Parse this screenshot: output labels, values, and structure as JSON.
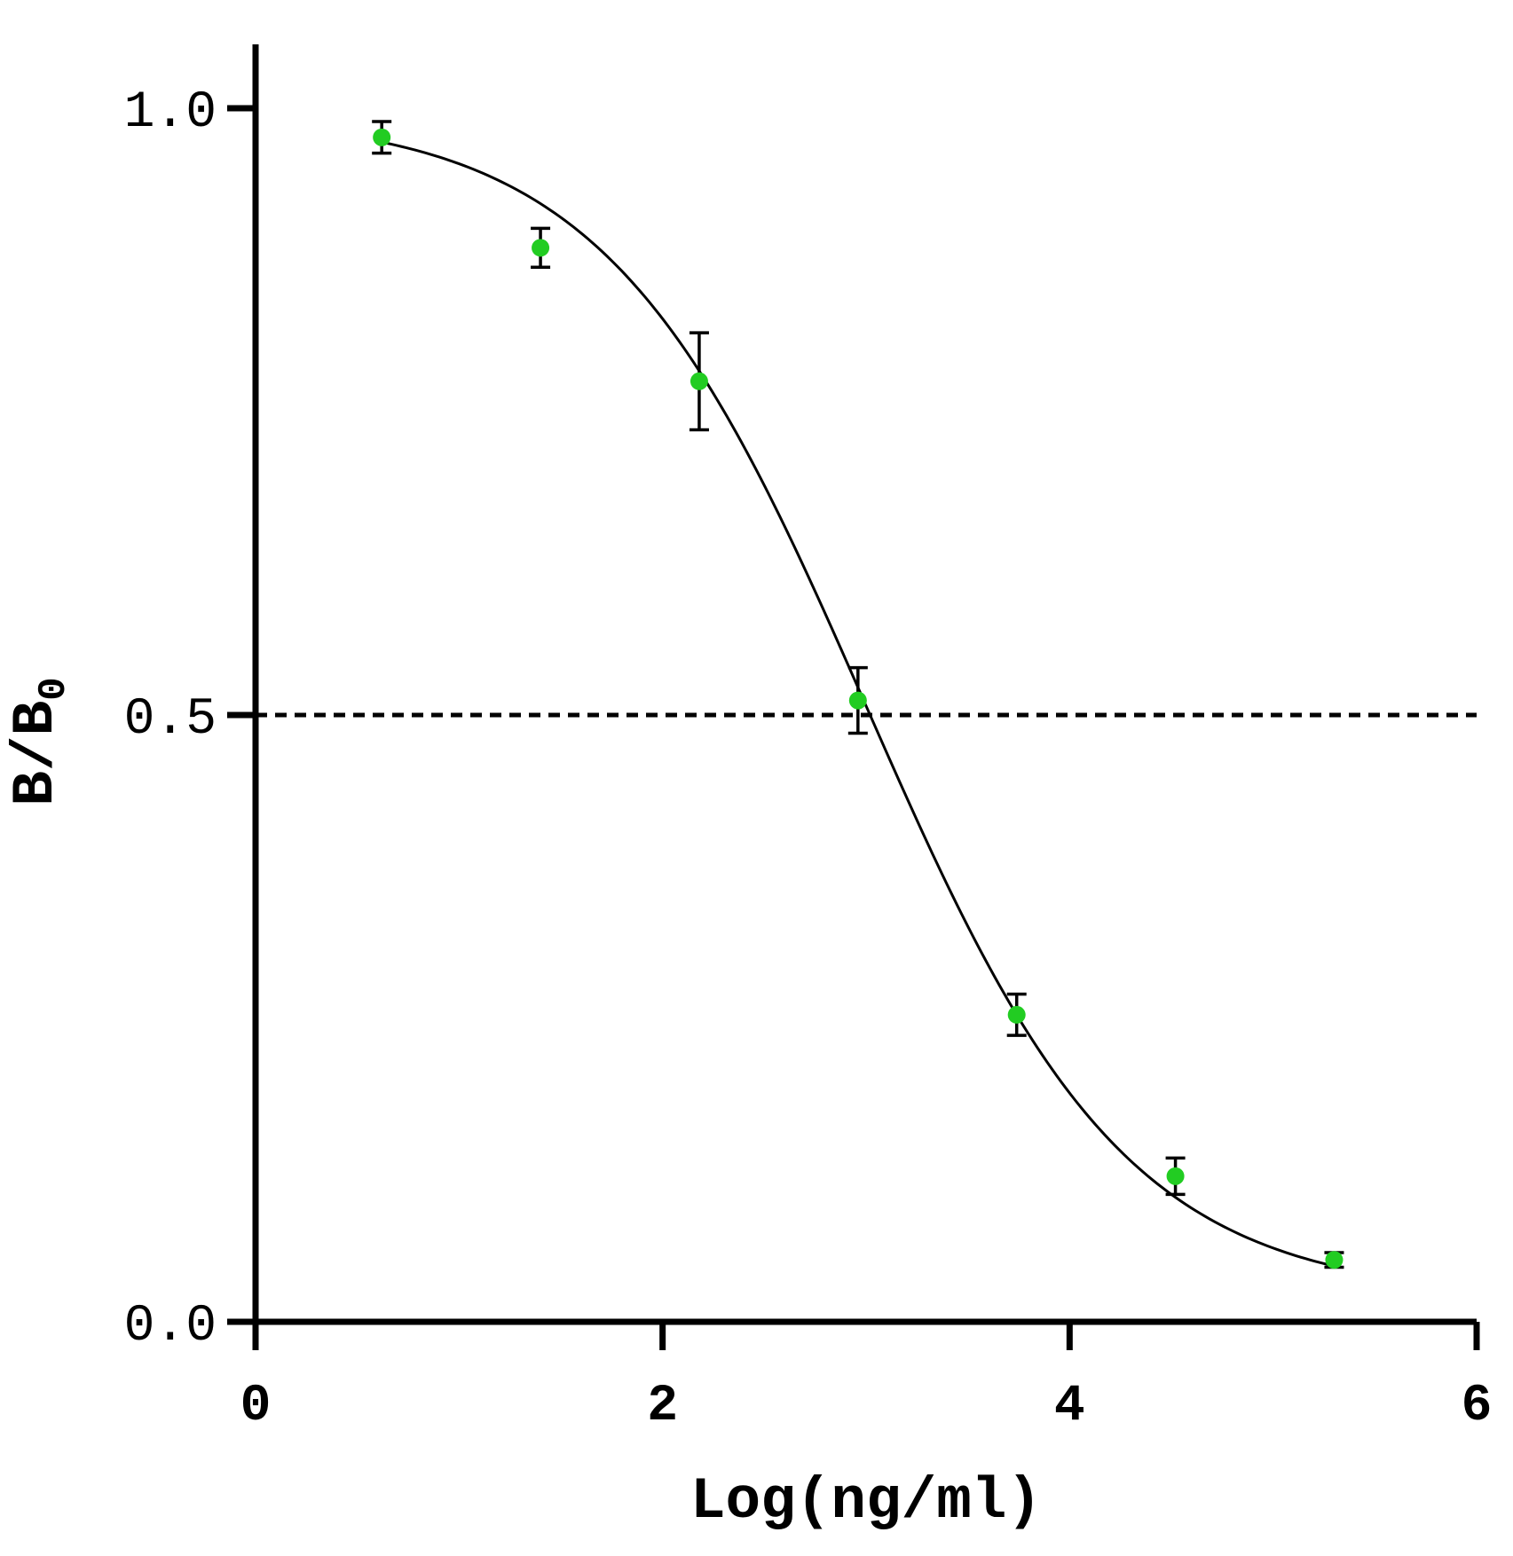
{
  "chart_data": {
    "type": "scatter",
    "xlabel": "Log(ng/ml)",
    "ylabel": {
      "main": "B/B",
      "subscript": "0"
    },
    "xlim": [
      0,
      6
    ],
    "ylim": [
      0,
      1.05
    ],
    "xticks": [
      0,
      2,
      4,
      6
    ],
    "xtick_labels": [
      "0",
      "2",
      "4",
      "6"
    ],
    "yticks": [
      0.0,
      0.5,
      1.0
    ],
    "ytick_labels": [
      "0.0",
      "0.5",
      "1.0"
    ],
    "grid": false,
    "legend": "none",
    "reference_line": {
      "y": 0.5,
      "style": "dashed"
    },
    "series": [
      {
        "marker_color": "#22cc22",
        "points": [
          {
            "x": 0.62,
            "y": 0.976,
            "err": 0.013
          },
          {
            "x": 1.4,
            "y": 0.885,
            "err": 0.016
          },
          {
            "x": 2.18,
            "y": 0.775,
            "err": 0.04
          },
          {
            "x": 2.96,
            "y": 0.512,
            "err": 0.027
          },
          {
            "x": 3.74,
            "y": 0.253,
            "err": 0.017
          },
          {
            "x": 4.52,
            "y": 0.12,
            "err": 0.015
          },
          {
            "x": 5.3,
            "y": 0.051,
            "err": 0.006
          }
        ]
      }
    ],
    "fit_curve": {
      "model": "4PL",
      "top": 0.995,
      "bottom": 0.02,
      "logIC50": 3.0,
      "hill": 0.68,
      "x_range": [
        0.6,
        5.3
      ]
    }
  }
}
